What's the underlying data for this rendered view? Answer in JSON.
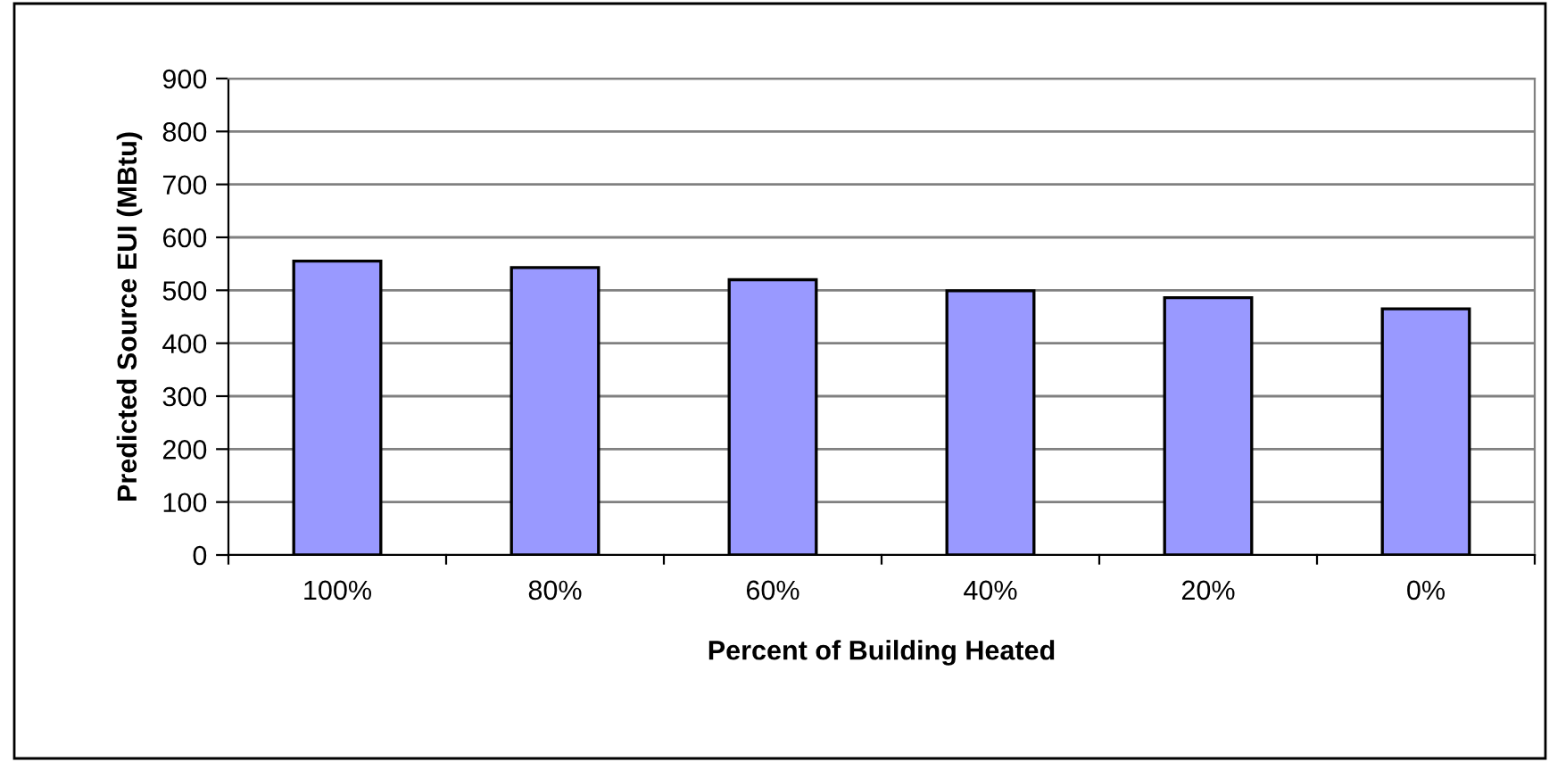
{
  "chart_data": {
    "type": "bar",
    "xlabel": "Percent of Building Heated",
    "ylabel": "Predicted Source EUI (MBtu)",
    "categories": [
      "100%",
      "80%",
      "60%",
      "40%",
      "20%",
      "0%"
    ],
    "values": [
      555,
      543,
      520,
      499,
      486,
      465
    ],
    "color": "#9999ff",
    "ylim": [
      0,
      900
    ],
    "yticks": [
      0,
      100,
      200,
      300,
      400,
      500,
      600,
      700,
      800,
      900
    ],
    "grid": "y",
    "legend": false
  }
}
